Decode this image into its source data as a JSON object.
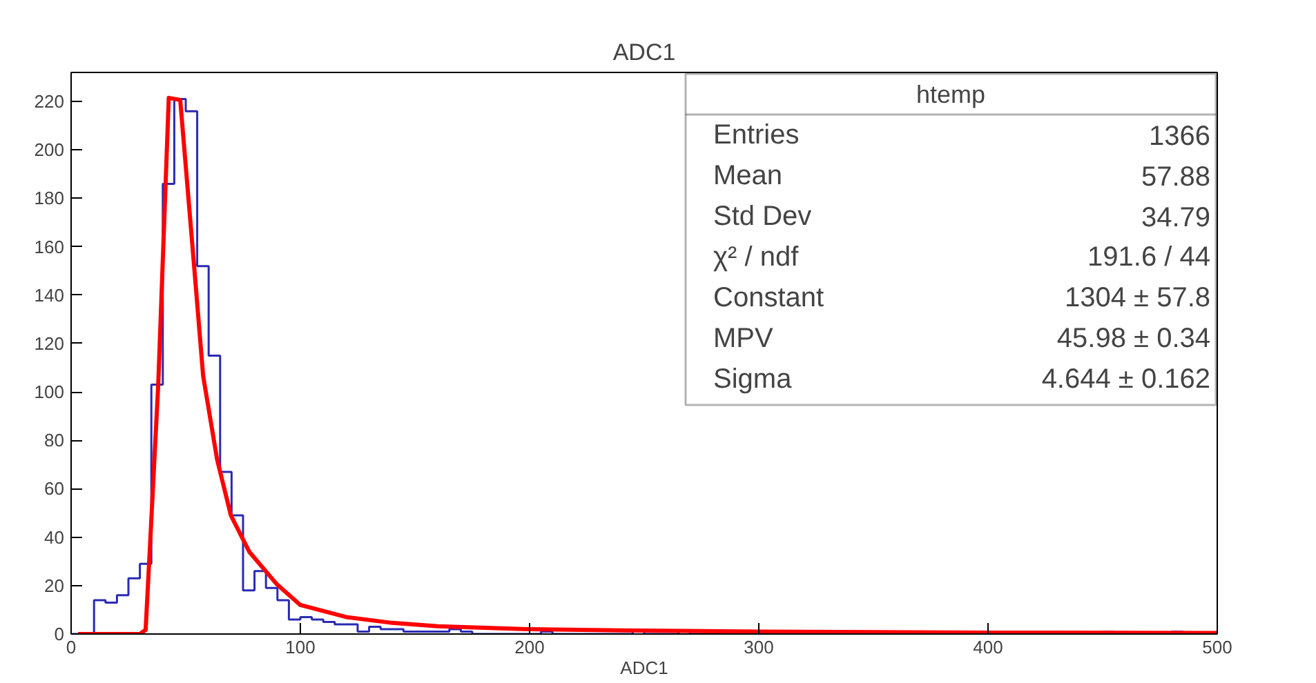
{
  "chart_data": {
    "type": "histogram",
    "title": "ADC1",
    "xlabel": "ADC1",
    "bins": [
      0,
      5,
      10,
      15,
      20,
      25,
      30,
      35,
      40,
      45,
      50,
      55,
      60,
      65,
      70,
      75,
      80,
      85,
      90,
      95,
      100,
      105,
      110,
      115,
      120,
      125,
      130,
      135,
      140,
      145,
      150,
      155,
      160,
      165,
      170,
      175,
      180,
      185,
      190,
      195,
      200,
      205,
      210,
      215,
      220,
      225,
      230,
      235,
      240,
      245,
      250,
      255,
      260,
      265,
      270,
      275,
      280,
      285,
      290,
      295,
      300,
      305,
      310,
      315,
      320,
      325,
      330,
      335,
      340,
      345,
      350,
      355,
      360,
      365,
      370,
      375,
      380,
      385,
      390,
      395,
      400,
      405,
      410,
      415,
      420,
      425,
      430,
      435,
      440,
      445,
      450,
      455,
      460,
      465,
      470,
      475,
      480,
      485,
      490,
      495,
      500
    ],
    "series": [
      {
        "color": "#2a2ab4",
        "values": [
          0,
          0,
          14,
          13,
          16,
          23,
          29,
          103,
          186,
          221,
          216,
          152,
          115,
          67,
          49,
          18,
          26,
          19,
          14,
          6,
          7,
          6,
          5,
          4,
          4,
          1,
          3,
          2,
          2,
          1,
          1,
          1,
          1,
          2,
          1,
          0,
          0,
          0,
          0,
          0,
          0,
          1,
          0,
          0,
          0,
          0,
          0,
          0,
          0,
          1,
          0,
          0,
          0,
          1,
          0,
          0,
          0,
          0,
          0,
          0,
          1,
          0,
          1,
          0,
          0,
          0,
          0,
          0,
          0,
          0,
          0,
          0,
          1,
          0,
          0,
          0,
          0,
          0,
          0,
          0,
          1,
          0,
          0,
          0,
          0,
          0,
          0,
          0,
          0,
          0,
          1,
          0,
          0,
          0,
          0,
          0,
          1,
          0,
          0,
          0
        ]
      },
      {
        "type": "line",
        "color": "#ff0000",
        "x": [
          3,
          30,
          32.5,
          34.5,
          38,
          42.6,
          47.6,
          53.6,
          57.6,
          63.7,
          69.7,
          77.7,
          89.8,
          100,
          120,
          140,
          160,
          200,
          240,
          300,
          400,
          500
        ],
        "values": [
          0,
          0,
          1.7,
          38,
          103,
          221.5,
          220.6,
          152.6,
          106.6,
          72,
          49,
          34,
          20.5,
          12,
          7,
          4.6,
          3.2,
          2,
          1.5,
          1,
          0.6,
          0.4
        ]
      }
    ],
    "xlim": [
      0,
      500
    ],
    "ylim": [
      0,
      232
    ],
    "xticks": [
      0,
      100,
      200,
      300,
      400,
      500
    ],
    "yticks": [
      0,
      20,
      40,
      60,
      80,
      100,
      120,
      140,
      160,
      180,
      200,
      220
    ],
    "grid": false,
    "annotations": [
      "htemp",
      "Entries",
      "1366",
      "Mean",
      "57.88",
      "Std Dev",
      "34.79",
      "χ² / ndf",
      "191.6 / 44",
      "Constant",
      "1304 ± 57.8",
      "MPV",
      "45.98 ± 0.34",
      "Sigma",
      "4.644 ± 0.162"
    ]
  }
}
